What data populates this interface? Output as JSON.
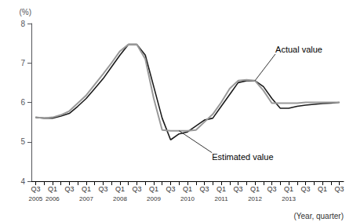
{
  "chart_data": {
    "type": "line",
    "y_label": "(%)",
    "x_label": "(Year, quarter)",
    "categories": [
      "Q3",
      null,
      "Q1",
      null,
      "Q3",
      null,
      "Q1",
      null,
      "Q3",
      null,
      "Q1",
      null,
      "Q3",
      null,
      "Q1",
      null,
      "Q3",
      null,
      "Q1",
      null,
      "Q3",
      null,
      "Q1",
      null,
      "Q3",
      null,
      "Q1",
      null,
      "Q3",
      null,
      "Q1",
      null,
      "Q3",
      null,
      "Q1",
      null,
      "Q3"
    ],
    "year_labels": [
      "2005",
      null,
      "2006",
      null,
      null,
      null,
      "2007",
      null,
      null,
      null,
      "2008",
      null,
      null,
      null,
      "2009",
      null,
      null,
      null,
      "2010",
      null,
      null,
      null,
      "2011",
      null,
      null,
      null,
      "2012",
      null,
      null,
      null,
      "2013",
      null,
      null,
      null,
      null,
      null,
      null
    ],
    "series": [
      {
        "color": "#1a1a1a",
        "values": [
          5.62,
          5.6,
          5.6,
          5.65,
          5.72,
          5.9,
          6.1,
          6.35,
          6.6,
          6.9,
          7.2,
          7.47,
          7.47,
          7.2,
          6.4,
          5.6,
          5.05,
          5.2,
          5.25,
          5.4,
          5.55,
          5.6,
          5.9,
          6.2,
          6.5,
          6.55,
          6.55,
          6.4,
          6.1,
          5.85,
          5.85,
          5.9,
          5.93,
          5.95,
          5.97,
          5.98,
          6.0
        ]
      },
      {
        "color": "#999999",
        "values": [
          5.62,
          5.6,
          5.62,
          5.68,
          5.78,
          5.98,
          6.18,
          6.45,
          6.72,
          7.0,
          7.3,
          7.47,
          7.47,
          7.1,
          6.1,
          5.3,
          5.28,
          5.28,
          5.28,
          5.3,
          5.5,
          5.7,
          6.0,
          6.35,
          6.55,
          6.57,
          6.55,
          6.3,
          5.98,
          5.98,
          5.98,
          5.98,
          6.0,
          6.0,
          6.0,
          6.0,
          6.0
        ]
      }
    ],
    "ylim": [
      4,
      8
    ],
    "yticks": [
      4,
      5,
      6,
      7,
      8
    ],
    "grid": false,
    "annotations": [
      {
        "text": "Actual value",
        "x": 26,
        "y": 6.55
      },
      {
        "text": "Estimated value",
        "x": 17,
        "y": 5.28
      }
    ]
  }
}
